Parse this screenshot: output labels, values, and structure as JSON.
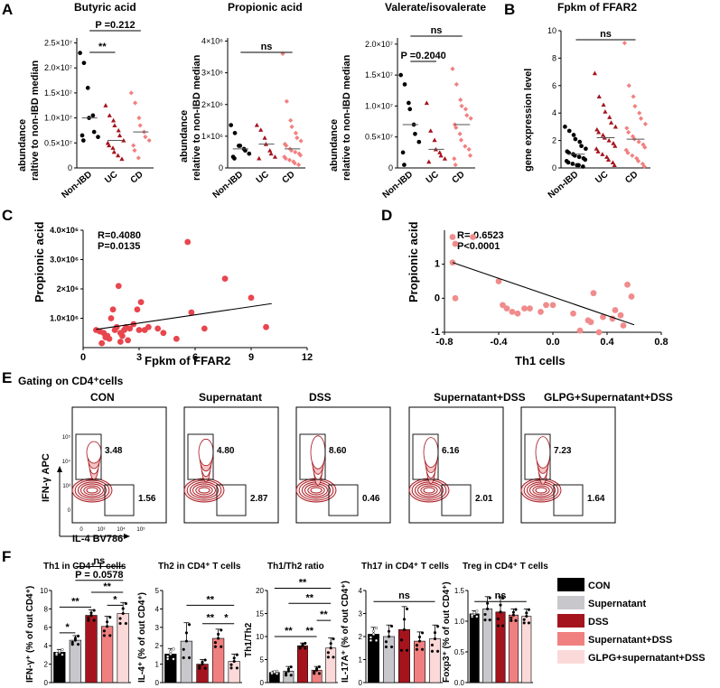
{
  "panel_letters": {
    "A": "A",
    "B": "B",
    "C": "C",
    "D": "D",
    "E": "E",
    "F": "F"
  },
  "colors": {
    "nonibd": "#000000",
    "uc": "#a5141d",
    "cd": "#f28080",
    "scatter_c": "#e8454d",
    "scatter_d": "#f08c8c",
    "sup": "#c8c8cc",
    "dss": "#a5141d",
    "supdss": "#f08080",
    "glpg": "#fcd9d9"
  },
  "panel_a": {
    "ylabel_1": "abundance",
    "ylabel_2": "raltive to non-IBD median",
    "ylabel_2b": "relative to non-IBD median",
    "groups": [
      "Non-IBD",
      "UC",
      "CD"
    ],
    "plots": [
      {
        "title": "Butyric acid",
        "ticks": [
          "0",
          "0.5×10⁷",
          "1.0×10⁷",
          "1.5×10⁷",
          "2.0×10⁷",
          "2.5×10⁷"
        ],
        "sig_top": "P =0.212",
        "sig_bottom": "**",
        "chart_data": {
          "type": "scatter",
          "categories": [
            "Non-IBD",
            "UC",
            "CD"
          ],
          "ylim": [
            0,
            2.6
          ],
          "values": [
            [
              2.3,
              2.1,
              1.6,
              1.0,
              1.05,
              0.72,
              0.62,
              0.65,
              0.55
            ],
            [
              1.25,
              1.05,
              0.95,
              0.85,
              0.75,
              0.65,
              0.55,
              0.5,
              0.45,
              0.4,
              0.32,
              0.25,
              0.18
            ],
            [
              1.5,
              1.3,
              1.0,
              0.85,
              0.72,
              0.62,
              0.55,
              0.45,
              0.35,
              0.2
            ]
          ]
        }
      },
      {
        "title": "Propionic acid",
        "ticks": [
          "0",
          "1×10⁶",
          "2×10⁶",
          "3×10⁶",
          "4×10⁶"
        ],
        "sig_top": "ns",
        "chart_data": {
          "type": "scatter",
          "categories": [
            "Non-IBD",
            "UC",
            "CD"
          ],
          "ylim": [
            0,
            4.1
          ],
          "values": [
            [
              1.35,
              1.1,
              0.7,
              0.7,
              0.6,
              0.55,
              0.45,
              0.35,
              0.3
            ],
            [
              1.35,
              1.2,
              0.95,
              0.75,
              0.55,
              0.45,
              0.35,
              0.3
            ],
            [
              3.6,
              2.1,
              1.5,
              1.3,
              1.1,
              0.95,
              0.85,
              0.75,
              0.7,
              0.6,
              0.55,
              0.5,
              0.45,
              0.4,
              0.35,
              0.3,
              0.25,
              0.2,
              0.15,
              0.1
            ]
          ]
        }
      },
      {
        "title": "Valerate/isovalerate",
        "ticks": [
          "0",
          "0.5×10⁷",
          "1.0×10⁷",
          "1.5×10⁷",
          "2.0×10⁷"
        ],
        "sig_top": "ns",
        "sig_bottom": "P =0.2040",
        "chart_data": {
          "type": "scatter",
          "categories": [
            "Non-IBD",
            "UC",
            "CD"
          ],
          "ylim": [
            0,
            2.1
          ],
          "values": [
            [
              1.5,
              1.35,
              1.05,
              0.95,
              0.7,
              0.55,
              0.42,
              0.25,
              0.05
            ],
            [
              1.05,
              0.6,
              0.45,
              0.3,
              0.25,
              0.2,
              0.15,
              0.1
            ],
            [
              1.6,
              1.35,
              1.1,
              1.0,
              0.95,
              0.85,
              0.8,
              0.7,
              0.65,
              0.55,
              0.45,
              0.35,
              0.3,
              0.2,
              0.15,
              0.05
            ]
          ]
        }
      }
    ]
  },
  "panel_b": {
    "title": "Fpkm of FFAR2",
    "ylabel": "gene expression level",
    "ticks": [
      "0",
      "2",
      "4",
      "6",
      "8",
      "10"
    ],
    "sig_top": "ns",
    "chart_data": {
      "type": "scatter",
      "categories": [
        "Non-IBD",
        "UC",
        "CD"
      ],
      "ylim": [
        0,
        10
      ],
      "values": [
        [
          3.0,
          2.7,
          2.4,
          2.1,
          1.9,
          1.6,
          1.4,
          1.2,
          1.1,
          1.0,
          0.9,
          0.8,
          0.7,
          0.6,
          0.5,
          0.4,
          0.3,
          0.2,
          0.2,
          0.1
        ],
        [
          6.9,
          5.2,
          4.6,
          4.1,
          3.7,
          3.3,
          3.0,
          2.8,
          2.6,
          2.4,
          2.2,
          2.0,
          1.8,
          1.6,
          1.4,
          1.2,
          1.0,
          0.8,
          0.6,
          0.4,
          0.2
        ],
        [
          9.1,
          6.0,
          5.2,
          4.5,
          4.0,
          3.6,
          3.2,
          2.9,
          2.6,
          2.3,
          2.1,
          1.9,
          1.7,
          1.5,
          1.3,
          1.1,
          0.9,
          0.7,
          0.5,
          0.3,
          0.1
        ]
      ]
    }
  },
  "panel_c": {
    "ylabel": "Propionic acid",
    "xlabel": "Fpkm of FFAR2",
    "r": "R=0.4080",
    "p": "P=0.0135",
    "yticks": [
      "1.0×10⁶",
      "2×10⁶",
      "3.0×10⁶",
      "4.0×10⁶"
    ],
    "xticks": [
      "0",
      "3",
      "6",
      "9",
      "12"
    ],
    "chart_data": {
      "type": "scatter",
      "xlim": [
        0,
        12
      ],
      "ylim": [
        0,
        4
      ],
      "x": [
        0.7,
        0.9,
        1.1,
        1.3,
        1.4,
        1.5,
        1.6,
        1.7,
        1.8,
        1.9,
        2.0,
        2.1,
        2.2,
        2.3,
        2.5,
        2.7,
        2.9,
        3.0,
        3.1,
        3.3,
        3.5,
        4.0,
        4.3,
        5.0,
        5.6,
        5.8,
        6.5,
        7.6,
        9.0,
        9.8,
        1.2,
        2.4,
        1.0,
        2.0
      ],
      "y": [
        0.6,
        0.55,
        0.5,
        0.4,
        0.3,
        1.0,
        1.3,
        0.6,
        0.7,
        2.1,
        0.5,
        0.4,
        0.6,
        0.7,
        0.65,
        0.8,
        1.3,
        0.6,
        1.55,
        0.6,
        0.7,
        0.65,
        0.5,
        0.3,
        3.6,
        1.2,
        0.65,
        2.35,
        1.7,
        0.7,
        0.35,
        0.25,
        0.15,
        0.2
      ],
      "fit": [
        [
          0.7,
          0.62
        ],
        [
          10.1,
          1.5
        ]
      ]
    }
  },
  "panel_d": {
    "ylabel": "Propionic acid",
    "xlabel": "Th1 cells",
    "r": "R=-0.6523",
    "p": "P<0.0001",
    "yticks": [
      "-1",
      "0",
      "1"
    ],
    "xticks": [
      "-0.8",
      "-0.4",
      "0.0",
      "0.4",
      "0.8"
    ],
    "chart_data": {
      "type": "scatter",
      "xlim": [
        -0.8,
        0.8
      ],
      "ylim": [
        -1,
        2
      ],
      "x": [
        -0.74,
        -0.72,
        -0.74,
        -0.72,
        -0.59,
        -0.4,
        -0.37,
        -0.34,
        -0.3,
        -0.26,
        -0.21,
        -0.17,
        -0.09,
        -0.05,
        0.0,
        0.15,
        0.2,
        0.26,
        0.28,
        0.3,
        0.34,
        0.37,
        0.44,
        0.46,
        0.5,
        0.52,
        0.55,
        0.58
      ],
      "y": [
        1.8,
        1.6,
        1.05,
        0.0,
        1.8,
        0.5,
        -0.2,
        -0.3,
        -0.4,
        -0.45,
        -0.3,
        -0.3,
        -0.4,
        -0.2,
        -0.2,
        -0.45,
        -0.95,
        -0.65,
        -0.7,
        0.15,
        -1.0,
        -0.55,
        -0.6,
        -0.35,
        -0.5,
        -0.8,
        0.4,
        0.05
      ],
      "fit": [
        [
          -0.74,
          1.05
        ],
        [
          0.6,
          -0.78
        ]
      ]
    }
  },
  "panel_e": {
    "header": "Gating on CD4⁺cells",
    "y_axis": "IFN-γ APC",
    "x_axis": "IL-4 BV786",
    "yticks": [
      "10⁵",
      "10⁴",
      "10³",
      "0"
    ],
    "xticks": [
      "0",
      "10³",
      "10⁴",
      "10⁵"
    ],
    "plots": [
      {
        "title": "CON",
        "th1": "3.48",
        "th2": "1.56"
      },
      {
        "title": "Supernatant",
        "th1": "4.80",
        "th2": "2.87"
      },
      {
        "title": "DSS",
        "th1": "8.60",
        "th2": "0.46"
      },
      {
        "title": "Supernatant+DSS",
        "th1": "6.16",
        "th2": "2.01"
      },
      {
        "title": "GLPG+Supernatant+DSS",
        "th1": "7.23",
        "th2": "1.64"
      }
    ]
  },
  "panel_f": {
    "legend": [
      "CON",
      "Supernatant",
      "DSS",
      "Supernatant+DSS",
      "GLPG+supernatant+DSS"
    ],
    "plots": [
      {
        "title": "Th1 in CD4⁺ T cells",
        "ylabel": "IFN-γ⁺ (% of out CD4⁺)",
        "ticks": [
          "0",
          "2",
          "4",
          "6",
          "8",
          "10"
        ],
        "sigs": [
          "*",
          "**",
          "*",
          "**",
          "P = 0.0578",
          "ns"
        ],
        "chart_data": {
          "type": "bar",
          "categories": [
            "CON",
            "Supernatant",
            "DSS",
            "Supernatant+DSS",
            "GLPG+supernatant+DSS"
          ],
          "ylim": [
            0,
            10
          ],
          "values": [
            3.3,
            4.6,
            7.3,
            6.1,
            7.5
          ],
          "errors": [
            0.3,
            0.5,
            0.6,
            1.1,
            1.2
          ]
        }
      },
      {
        "title": "Th2 in CD4⁺ T cells",
        "ylabel": "IL-4⁺ (% of out CD4⁺)",
        "ticks": [
          "0",
          "1",
          "2",
          "3",
          "4",
          "5"
        ],
        "sigs": [
          "**",
          "**",
          "*",
          "**"
        ],
        "chart_data": {
          "type": "bar",
          "categories": [
            "CON",
            "Supernatant",
            "DSS",
            "Supernatant+DSS",
            "GLPG+supernatant+DSS"
          ],
          "ylim": [
            0,
            5
          ],
          "values": [
            1.55,
            2.25,
            1.0,
            2.4,
            1.15
          ],
          "errors": [
            0.3,
            1.0,
            0.25,
            0.5,
            0.4
          ]
        }
      },
      {
        "title": "Th1/Th2 ratio",
        "ylabel": "Th1/Th2",
        "ticks": [
          "0",
          "5",
          "10",
          "15",
          "20"
        ],
        "sigs": [
          "**",
          "**",
          "**",
          "**",
          "**"
        ],
        "chart_data": {
          "type": "bar",
          "categories": [
            "CON",
            "Supernatant",
            "DSS",
            "Supernatant+DSS",
            "GLPG+supernatant+DSS"
          ],
          "ylim": [
            0,
            20
          ],
          "values": [
            2.2,
            2.5,
            8.0,
            2.7,
            7.5
          ],
          "errors": [
            0.3,
            1.0,
            0.6,
            0.8,
            2.2
          ]
        }
      },
      {
        "title": "Th17 in CD4⁺ T cells",
        "ylabel": "IL-17A⁺ (% of out CD4⁺)",
        "ticks": [
          "0",
          "1",
          "2",
          "3",
          "4"
        ],
        "sigs": [
          "ns"
        ],
        "chart_data": {
          "type": "bar",
          "categories": [
            "CON",
            "Supernatant",
            "DSS",
            "Supernatant+DSS",
            "GLPG+supernatant+DSS"
          ],
          "ylim": [
            0,
            4
          ],
          "values": [
            2.1,
            2.0,
            2.3,
            1.8,
            1.9
          ],
          "errors": [
            0.3,
            0.5,
            1.0,
            0.4,
            0.6
          ]
        }
      },
      {
        "title": "Treg in CD4⁺ T cells",
        "ylabel": "Foxp3⁺ (% of out CD4⁺)",
        "ticks": [
          "0.0",
          "0.5",
          "1.0",
          "1.5"
        ],
        "sigs": [
          "ns"
        ],
        "chart_data": {
          "type": "bar",
          "categories": [
            "CON",
            "Supernatant",
            "DSS",
            "Supernatant+DSS",
            "GLPG+supernatant+DSS"
          ],
          "ylim": [
            0,
            1.5
          ],
          "values": [
            1.12,
            1.2,
            1.15,
            1.1,
            1.08
          ],
          "errors": [
            0.05,
            0.2,
            0.25,
            0.1,
            0.12
          ]
        }
      }
    ]
  }
}
